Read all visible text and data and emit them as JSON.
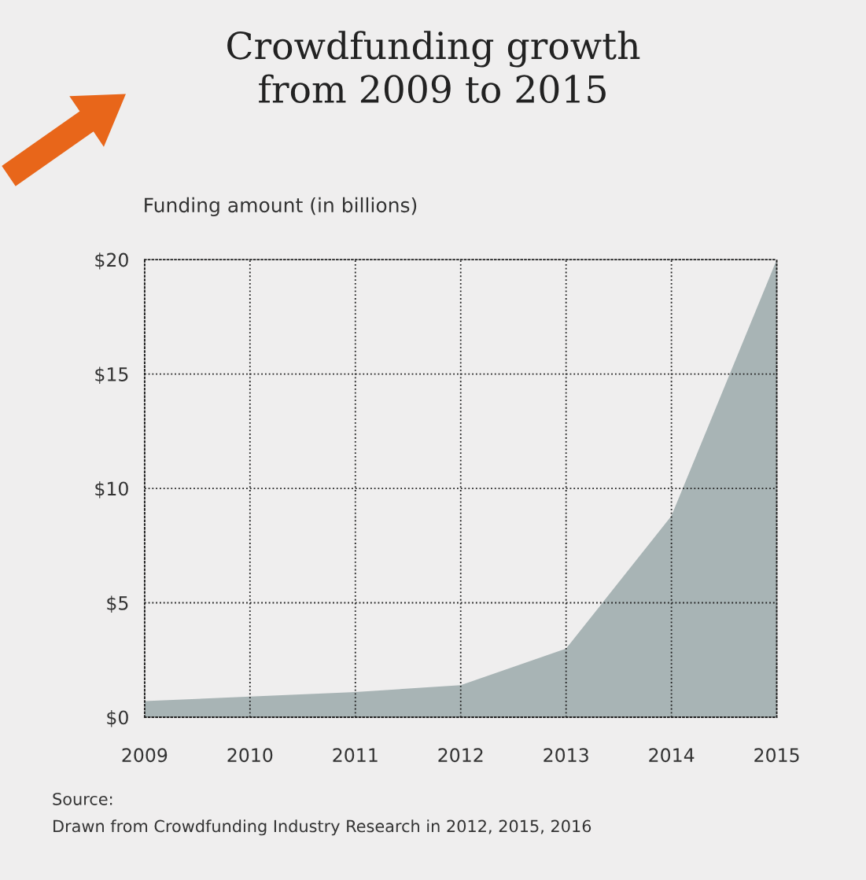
{
  "chart_data": {
    "type": "area",
    "title": "Crowdfunding growth\nfrom 2009 to 2015",
    "ylabel": "Funding amount (in billions)",
    "categories": [
      "2009",
      "2010",
      "2011",
      "2012",
      "2013",
      "2014",
      "2015"
    ],
    "series": [
      {
        "color": "#a8b4b5",
        "values": [
          0.7,
          0.9,
          1.1,
          1.4,
          3.0,
          8.8,
          20
        ]
      }
    ],
    "ylim": [
      0,
      20
    ],
    "yticks": [
      {
        "value": 0,
        "label": "$0"
      },
      {
        "value": 5,
        "label": "$5"
      },
      {
        "value": 10,
        "label": "$10"
      },
      {
        "value": 15,
        "label": "$15"
      },
      {
        "value": 20,
        "label": "$20"
      }
    ],
    "grid": true,
    "line_style": "dotted",
    "annotations": [
      "Source:\nDrawn from Crowdfunding Industry Research in 2012, 2015, 2016"
    ]
  }
}
